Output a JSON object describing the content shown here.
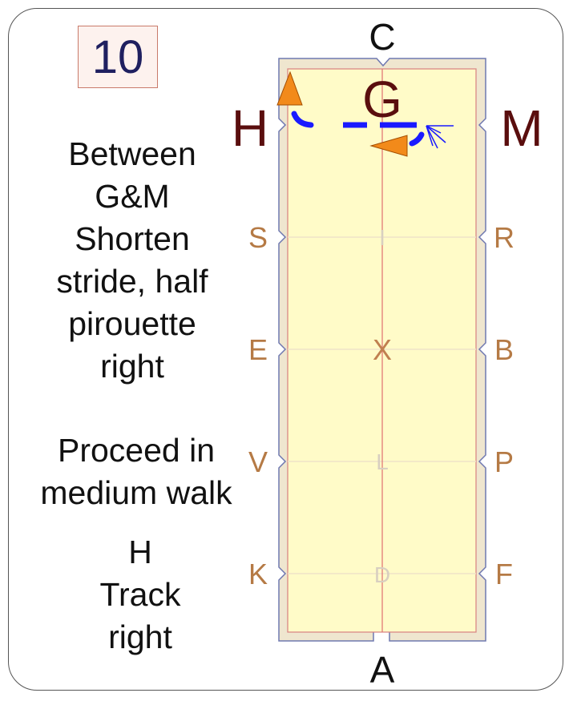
{
  "test_number": "10",
  "instructions": [
    [
      "Between",
      "G&M",
      "Shorten",
      "stride, half",
      "pirouette",
      "right"
    ],
    [
      "Proceed in",
      "medium walk"
    ],
    [
      "H",
      "Track",
      "right"
    ]
  ],
  "arena": {
    "letters": {
      "top": "C",
      "bottom": "A",
      "corner_left": "H",
      "corner_right": "M",
      "centre_top": "G",
      "S": "S",
      "R": "R",
      "E": "E",
      "B": "B",
      "V": "V",
      "P": "P",
      "K": "K",
      "F": "F",
      "I": "I",
      "X": "X",
      "L": "L",
      "D": "D"
    },
    "colors": {
      "fence": "#efe6cf",
      "sand": "#fffbc8",
      "centre_line": "#e07070",
      "letter": "#b57a45",
      "big_letter": "#5a0e0e",
      "path": "#1a1aff",
      "arrow": "#f28a1a"
    }
  }
}
